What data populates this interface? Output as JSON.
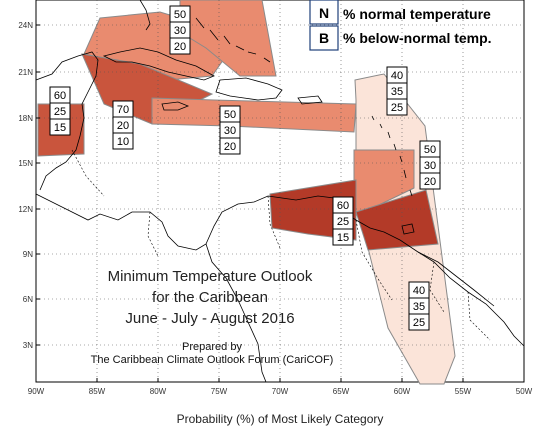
{
  "title": {
    "line1": "Minimum Temperature Outlook",
    "line2": "for the Caribbean",
    "line3": "June - July - August 2016"
  },
  "credit": {
    "line1": "Prepared by",
    "line2": "The Caribbean Climate Outlook Forum (CariCOF)"
  },
  "legend": {
    "items": [
      {
        "key": "N",
        "label": "% normal temperature"
      },
      {
        "key": "B",
        "label": "% below-normal temp."
      }
    ]
  },
  "x_axis_caption": "Probability (%) of Most Likely Category",
  "y_ticks": [
    "24N",
    "21N",
    "18N",
    "15N",
    "12N",
    "9N",
    "6N",
    "3N"
  ],
  "x_ticks": [
    "90W",
    "85W",
    "80W",
    "75W",
    "70W",
    "65W",
    "60W",
    "55W",
    "50W"
  ],
  "colors": {
    "dark": "#b33a28",
    "mid_dark": "#c9553d",
    "medium": "#e98b6f",
    "light": "#fbe4d9",
    "region_stroke": "#8a8a8a"
  },
  "regions": [
    {
      "name": "bahamas-cuba-north",
      "shade": "medium"
    },
    {
      "name": "turks-caicos-east",
      "shade": "medium"
    },
    {
      "name": "cuba-jamaica",
      "shade": "mid_dark"
    },
    {
      "name": "hispaniola-puerto-rico",
      "shade": "medium"
    },
    {
      "name": "belize",
      "shade": "mid_dark"
    },
    {
      "name": "eastern-caribbean-band",
      "shade": "light"
    },
    {
      "name": "lesser-antilles",
      "shade": "medium"
    },
    {
      "name": "southern-caribbean",
      "shade": "dark"
    },
    {
      "name": "trinidad-guyana",
      "shade": "dark"
    }
  ],
  "probability_boxes": [
    {
      "values": [
        "50",
        "30",
        "20"
      ]
    },
    {
      "values": [
        "60",
        "25",
        "15"
      ]
    },
    {
      "values": [
        "70",
        "20",
        "10"
      ]
    },
    {
      "values": [
        "50",
        "30",
        "20"
      ]
    },
    {
      "values": [
        "40",
        "35",
        "25"
      ]
    },
    {
      "values": [
        "50",
        "30",
        "20"
      ]
    },
    {
      "values": [
        "60",
        "25",
        "15"
      ]
    },
    {
      "values": [
        "40",
        "35",
        "25"
      ]
    }
  ]
}
